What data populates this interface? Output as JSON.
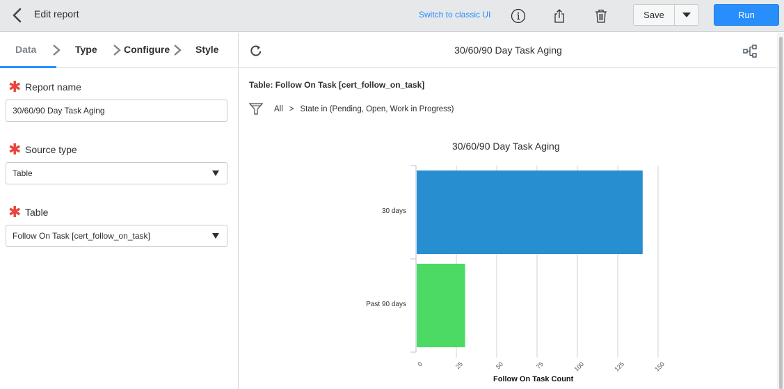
{
  "topbar": {
    "title": "Edit report",
    "classic_link": "Switch to classic UI",
    "save_label": "Save",
    "run_label": "Run"
  },
  "steps": [
    {
      "label": "Data",
      "active": true
    },
    {
      "label": "Type",
      "active": false
    },
    {
      "label": "Configure",
      "active": false
    },
    {
      "label": "Style",
      "active": false
    }
  ],
  "form": {
    "report_name": {
      "label": "Report name",
      "value": "30/60/90 Day Task Aging"
    },
    "source_type": {
      "label": "Source type",
      "value": "Table"
    },
    "table": {
      "label": "Table",
      "value": "Follow On Task [cert_follow_on_task]"
    }
  },
  "preview": {
    "title": "30/60/90 Day Task Aging",
    "table_label": "Table: Follow On Task [cert_follow_on_task]",
    "filter": {
      "root": "All",
      "separator": ">",
      "condition": "State in (Pending, Open, Work in Progress)"
    }
  },
  "icons": {
    "back": "chevron-left-icon",
    "info": "info-icon",
    "share": "share-icon",
    "delete": "trash-icon",
    "refresh": "refresh-icon",
    "hierarchy": "hierarchy-icon",
    "filter": "funnel-icon",
    "required": "asterisk-icon"
  },
  "colors": {
    "accent": "#278efc",
    "bar_30_days": "#278ecf",
    "bar_past_90_days": "#4cd964",
    "required": "#e8453c"
  },
  "chart_data": {
    "type": "bar",
    "orientation": "horizontal",
    "title": "30/60/90 Day Task Aging",
    "categories": [
      "30 days",
      "Past 90 days"
    ],
    "values": [
      140,
      30
    ],
    "colors": [
      "#278ecf",
      "#4cd964"
    ],
    "xlabel": "Follow On Task Count",
    "ylabel": "",
    "xlim": [
      0,
      150
    ],
    "xticks": [
      "0",
      "25",
      "50",
      "75",
      "100",
      "125",
      "150"
    ],
    "grid": "vertical",
    "legend": "none"
  }
}
